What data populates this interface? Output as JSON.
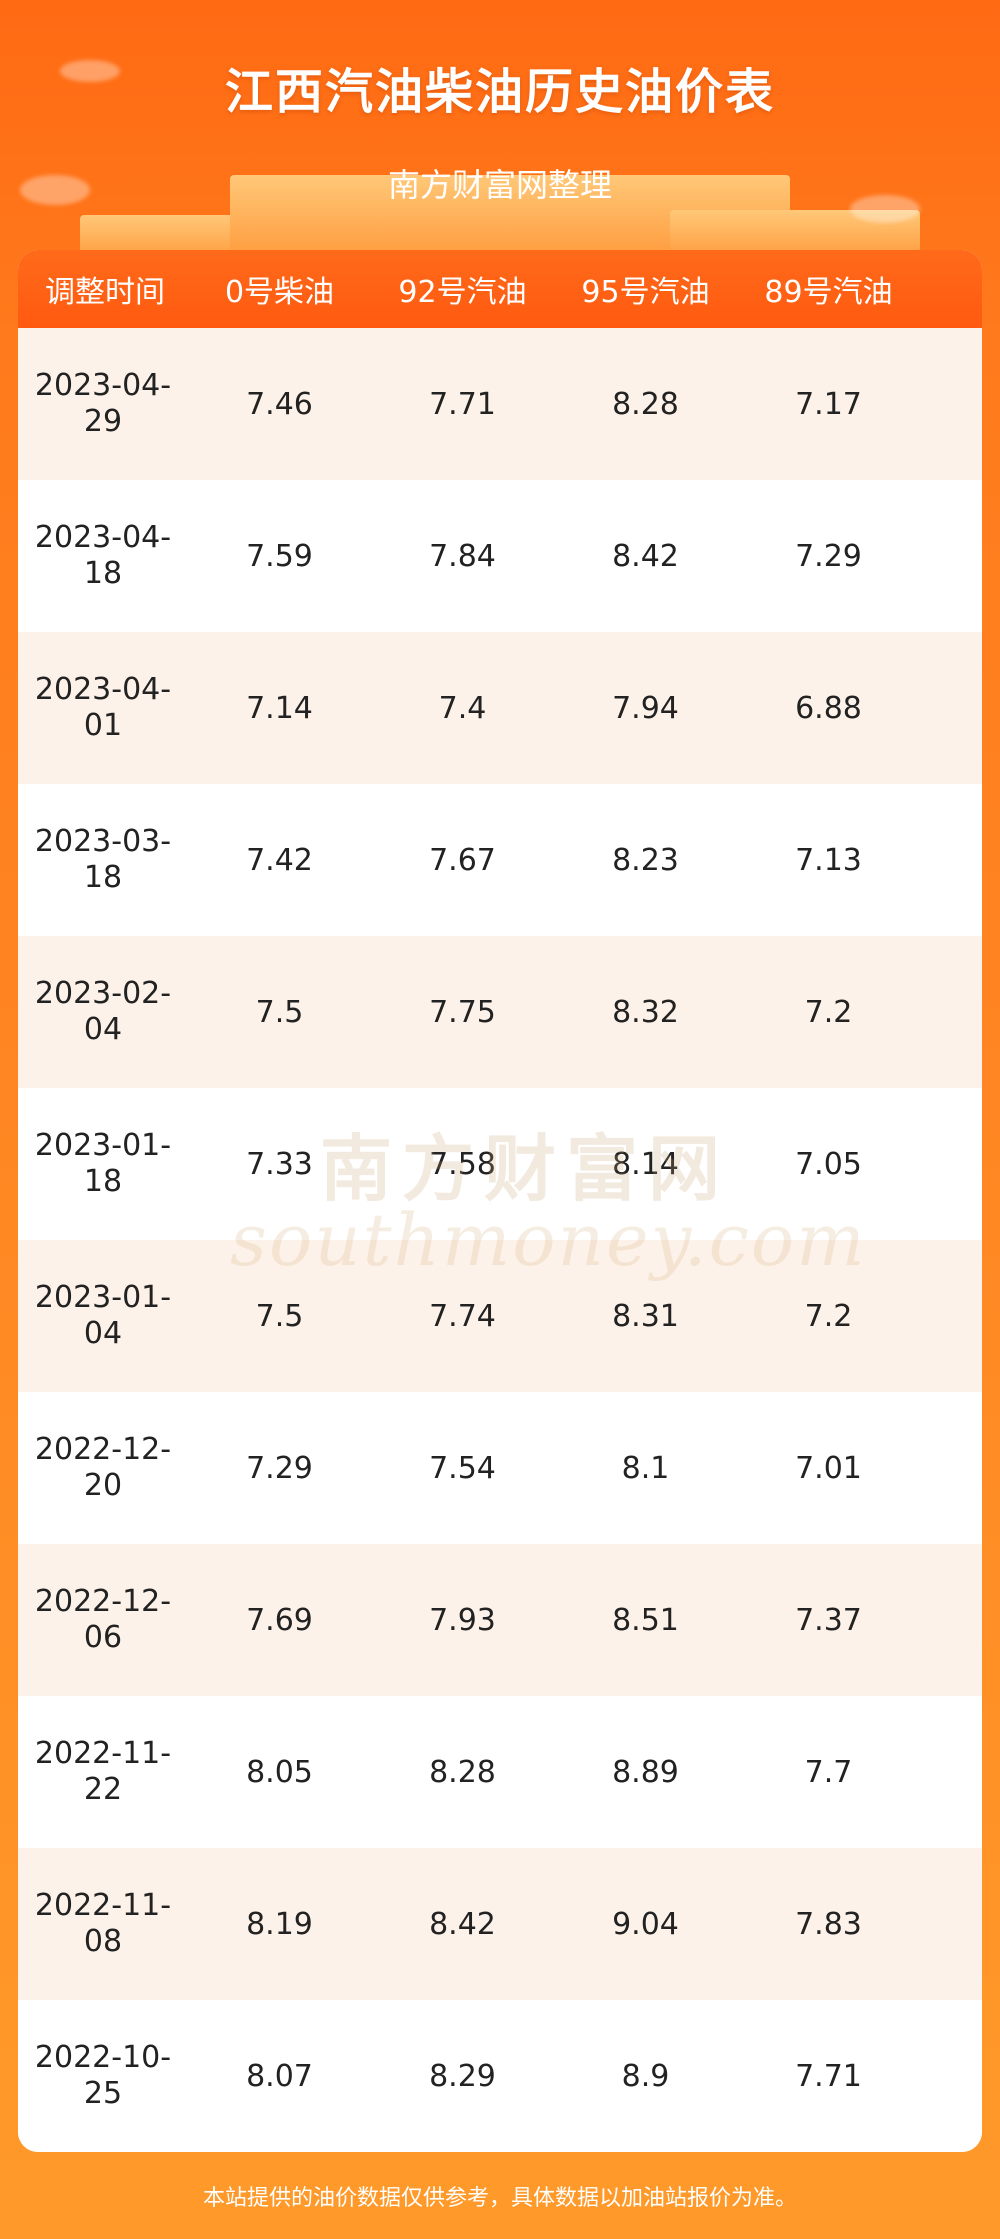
{
  "title": "江西汽油柴油历史油价表",
  "subtitle": "南方财富网整理",
  "table": {
    "headers": [
      "调整时间",
      "0号柴油",
      "92号汽油",
      "95号汽油",
      "89号汽油"
    ],
    "rows": [
      {
        "date": "2023-04-29",
        "diesel0": "7.46",
        "gas92": "7.71",
        "gas95": "8.28",
        "gas89": "7.17"
      },
      {
        "date": "2023-04-18",
        "diesel0": "7.59",
        "gas92": "7.84",
        "gas95": "8.42",
        "gas89": "7.29"
      },
      {
        "date": "2023-04-01",
        "diesel0": "7.14",
        "gas92": "7.4",
        "gas95": "7.94",
        "gas89": "6.88"
      },
      {
        "date": "2023-03-18",
        "diesel0": "7.42",
        "gas92": "7.67",
        "gas95": "8.23",
        "gas89": "7.13"
      },
      {
        "date": "2023-02-04",
        "diesel0": "7.5",
        "gas92": "7.75",
        "gas95": "8.32",
        "gas89": "7.2"
      },
      {
        "date": "2023-01-18",
        "diesel0": "7.33",
        "gas92": "7.58",
        "gas95": "8.14",
        "gas89": "7.05"
      },
      {
        "date": "2023-01-04",
        "diesel0": "7.5",
        "gas92": "7.74",
        "gas95": "8.31",
        "gas89": "7.2"
      },
      {
        "date": "2022-12-20",
        "diesel0": "7.29",
        "gas92": "7.54",
        "gas95": "8.1",
        "gas89": "7.01"
      },
      {
        "date": "2022-12-06",
        "diesel0": "7.69",
        "gas92": "7.93",
        "gas95": "8.51",
        "gas89": "7.37"
      },
      {
        "date": "2022-11-22",
        "diesel0": "8.05",
        "gas92": "8.28",
        "gas95": "8.89",
        "gas89": "7.7"
      },
      {
        "date": "2022-11-08",
        "diesel0": "8.19",
        "gas92": "8.42",
        "gas95": "9.04",
        "gas89": "7.83"
      },
      {
        "date": "2022-10-25",
        "diesel0": "8.07",
        "gas92": "8.29",
        "gas95": "8.9",
        "gas89": "7.71"
      }
    ]
  },
  "watermark": {
    "cn": "南方财富网",
    "en": "southmoney.com"
  },
  "footer": "本站提供的油价数据仅供参考，具体数据以加油站报价为准。",
  "colors": {
    "accent": "#ff5a10",
    "row_alt": "#fdf2e9"
  }
}
